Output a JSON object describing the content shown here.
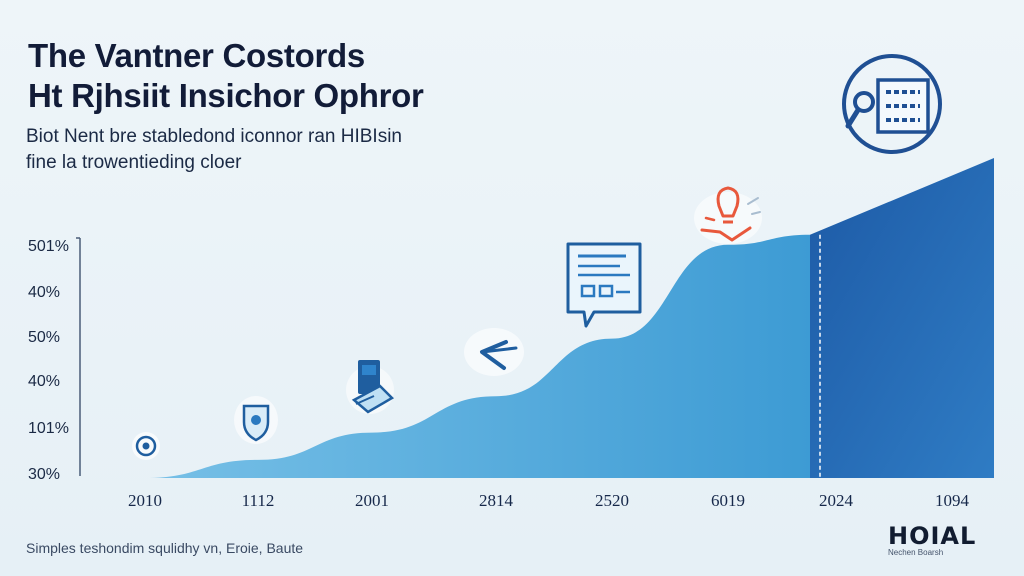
{
  "title_lines": [
    "The Vantner Costords",
    "Ht Rjhsiit Insichor Ophror"
  ],
  "subtitle_lines": [
    "Biot Nent bre stabledond iconnor ran HIBIsin",
    "fine la trowentieding cloer"
  ],
  "footer_note": "Simples teshondim  squlidhy vn, Eroie, Baute",
  "brand": {
    "mark": "HOIAL",
    "tagline": "Nechen Boarsh"
  },
  "colors": {
    "area_light": "#5cb2de",
    "area_dark": "#1e64b4",
    "accent": "#e8583c",
    "icon_stroke": "#1f5e9f"
  },
  "icons": [
    "shield-badge-icon",
    "shield-check-icon",
    "mailbox-icon",
    "arrow-icon",
    "document-chat-icon",
    "lightbulb-icon",
    "chip-monitor-icon"
  ],
  "chart_data": {
    "type": "area",
    "x_labels": [
      "2010",
      "1112",
      "2001",
      "2814",
      "2520",
      "6019",
      "2024",
      "1094"
    ],
    "y_labels": [
      "501%",
      "40%",
      "50%",
      "40%",
      "101%",
      "30%"
    ],
    "values": [
      0,
      6,
      15,
      27,
      46,
      77,
      100,
      105
    ],
    "highlight_from": "2024",
    "grid": false,
    "legend": "none"
  }
}
